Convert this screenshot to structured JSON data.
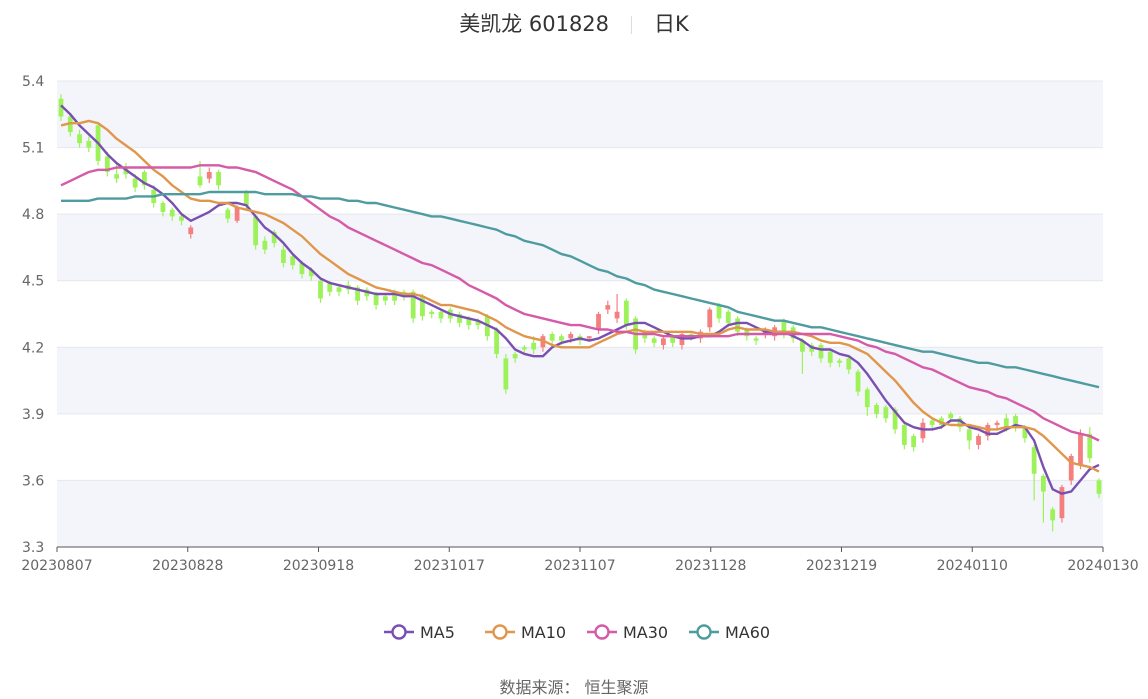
{
  "title": {
    "stock": "美凯龙 601828",
    "period": "日K"
  },
  "source_label": "数据来源：  恒生聚源",
  "colors": {
    "up": "#f47f7f",
    "down": "#9df25a",
    "MA5": "#7a4fb2",
    "MA10": "#e0964b",
    "MA30": "#d55aa8",
    "MA60": "#4f9ca0",
    "band": "#f4f5fb",
    "grid": "#e5e7ee",
    "axis_text": "#666666"
  },
  "chart_data": {
    "type": "candlestick",
    "title": "美凯龙 601828",
    "ylim": [
      3.3,
      5.4
    ],
    "yticks": [
      "5.4",
      "5.1",
      "4.8",
      "4.5",
      "4.2",
      "3.9",
      "3.6",
      "3.3"
    ],
    "xticks": [
      "20230807",
      "20230828",
      "20230918",
      "20231017",
      "20231107",
      "20231128",
      "20231219",
      "20240110",
      "20240130"
    ],
    "series": [
      {
        "name": "MA5",
        "values": [
          5.29,
          5.25,
          5.2,
          5.16,
          5.12,
          5.07,
          5.03,
          5.0,
          4.97,
          4.94,
          4.92,
          4.89,
          4.85,
          4.8,
          4.77,
          4.79,
          4.81,
          4.84,
          4.85,
          4.85,
          4.84,
          4.79,
          4.74,
          4.71,
          4.67,
          4.62,
          4.58,
          4.55,
          4.51,
          4.49,
          4.48,
          4.47,
          4.46,
          4.45,
          4.44,
          4.44,
          4.44,
          4.43,
          4.43,
          4.41,
          4.39,
          4.37,
          4.35,
          4.34,
          4.33,
          4.32,
          4.3,
          4.28,
          4.24,
          4.19,
          4.17,
          4.16,
          4.16,
          4.2,
          4.22,
          4.23,
          4.24,
          4.23,
          4.24,
          4.26,
          4.28,
          4.3,
          4.31,
          4.31,
          4.29,
          4.27,
          4.25,
          4.24,
          4.24,
          4.25,
          4.25,
          4.27,
          4.3,
          4.31,
          4.31,
          4.29,
          4.27,
          4.27,
          4.27,
          4.25,
          4.23,
          4.2,
          4.19,
          4.19,
          4.17,
          4.16,
          4.13,
          4.08,
          4.02,
          3.96,
          3.91,
          3.86,
          3.84,
          3.83,
          3.83,
          3.84,
          3.87,
          3.87,
          3.84,
          3.83,
          3.81,
          3.81,
          3.83,
          3.85,
          3.84,
          3.78,
          3.66,
          3.56,
          3.54,
          3.55,
          3.6,
          3.65,
          3.67
        ]
      },
      {
        "name": "MA10",
        "values": [
          5.2,
          5.21,
          5.21,
          5.22,
          5.21,
          5.18,
          5.14,
          5.11,
          5.08,
          5.04,
          5.0,
          4.97,
          4.93,
          4.9,
          4.87,
          4.86,
          4.86,
          4.85,
          4.85,
          4.83,
          4.82,
          4.81,
          4.8,
          4.78,
          4.76,
          4.73,
          4.7,
          4.66,
          4.62,
          4.59,
          4.56,
          4.53,
          4.51,
          4.49,
          4.47,
          4.46,
          4.45,
          4.44,
          4.44,
          4.43,
          4.41,
          4.39,
          4.39,
          4.38,
          4.37,
          4.36,
          4.34,
          4.32,
          4.29,
          4.27,
          4.25,
          4.24,
          4.23,
          4.21,
          4.2,
          4.2,
          4.2,
          4.2,
          4.22,
          4.24,
          4.26,
          4.27,
          4.28,
          4.27,
          4.27,
          4.27,
          4.27,
          4.27,
          4.27,
          4.26,
          4.26,
          4.26,
          4.28,
          4.29,
          4.28,
          4.28,
          4.28,
          4.27,
          4.27,
          4.27,
          4.26,
          4.25,
          4.23,
          4.22,
          4.22,
          4.21,
          4.19,
          4.17,
          4.13,
          4.09,
          4.05,
          4.0,
          3.95,
          3.91,
          3.88,
          3.86,
          3.85,
          3.85,
          3.85,
          3.84,
          3.83,
          3.83,
          3.84,
          3.84,
          3.84,
          3.83,
          3.8,
          3.76,
          3.72,
          3.68,
          3.67,
          3.66,
          3.64
        ]
      },
      {
        "name": "MA30",
        "values": [
          4.93,
          4.95,
          4.97,
          4.99,
          5.0,
          5.0,
          5.01,
          5.01,
          5.01,
          5.01,
          5.01,
          5.01,
          5.01,
          5.01,
          5.01,
          5.02,
          5.02,
          5.02,
          5.01,
          5.01,
          5.0,
          4.99,
          4.97,
          4.95,
          4.93,
          4.91,
          4.88,
          4.85,
          4.82,
          4.79,
          4.77,
          4.74,
          4.72,
          4.7,
          4.68,
          4.66,
          4.64,
          4.62,
          4.6,
          4.58,
          4.57,
          4.55,
          4.53,
          4.51,
          4.48,
          4.46,
          4.44,
          4.42,
          4.39,
          4.37,
          4.35,
          4.34,
          4.33,
          4.32,
          4.31,
          4.3,
          4.3,
          4.29,
          4.28,
          4.28,
          4.27,
          4.27,
          4.26,
          4.26,
          4.26,
          4.25,
          4.25,
          4.25,
          4.25,
          4.25,
          4.25,
          4.25,
          4.25,
          4.26,
          4.26,
          4.26,
          4.26,
          4.26,
          4.26,
          4.26,
          4.26,
          4.26,
          4.26,
          4.26,
          4.25,
          4.24,
          4.23,
          4.21,
          4.2,
          4.18,
          4.17,
          4.15,
          4.13,
          4.11,
          4.1,
          4.08,
          4.06,
          4.04,
          4.02,
          4.01,
          4.0,
          3.98,
          3.97,
          3.95,
          3.93,
          3.91,
          3.88,
          3.86,
          3.84,
          3.82,
          3.81,
          3.8,
          3.78
        ]
      },
      {
        "name": "MA60",
        "values": [
          4.86,
          4.86,
          4.86,
          4.86,
          4.87,
          4.87,
          4.87,
          4.87,
          4.88,
          4.88,
          4.88,
          4.89,
          4.89,
          4.89,
          4.89,
          4.89,
          4.9,
          4.9,
          4.9,
          4.9,
          4.9,
          4.9,
          4.89,
          4.89,
          4.89,
          4.89,
          4.88,
          4.88,
          4.87,
          4.87,
          4.87,
          4.86,
          4.86,
          4.85,
          4.85,
          4.84,
          4.83,
          4.82,
          4.81,
          4.8,
          4.79,
          4.79,
          4.78,
          4.77,
          4.76,
          4.75,
          4.74,
          4.73,
          4.71,
          4.7,
          4.68,
          4.67,
          4.66,
          4.64,
          4.62,
          4.61,
          4.59,
          4.57,
          4.55,
          4.54,
          4.52,
          4.51,
          4.49,
          4.48,
          4.46,
          4.45,
          4.44,
          4.43,
          4.42,
          4.41,
          4.4,
          4.39,
          4.38,
          4.36,
          4.35,
          4.34,
          4.33,
          4.32,
          4.32,
          4.31,
          4.3,
          4.29,
          4.29,
          4.28,
          4.27,
          4.26,
          4.25,
          4.24,
          4.23,
          4.22,
          4.21,
          4.2,
          4.19,
          4.18,
          4.18,
          4.17,
          4.16,
          4.15,
          4.14,
          4.13,
          4.13,
          4.12,
          4.11,
          4.11,
          4.1,
          4.09,
          4.08,
          4.07,
          4.06,
          4.05,
          4.04,
          4.03,
          4.02
        ]
      }
    ],
    "candles": {
      "open": [
        5.32,
        5.24,
        5.16,
        5.13,
        5.2,
        5.06,
        4.98,
        5.01,
        4.96,
        4.99,
        4.91,
        4.85,
        4.82,
        4.79,
        4.71,
        4.97,
        4.96,
        4.99,
        4.82,
        4.77,
        4.9,
        4.79,
        4.68,
        4.72,
        4.64,
        4.61,
        4.58,
        4.55,
        4.5,
        4.49,
        4.47,
        4.48,
        4.47,
        4.46,
        4.44,
        4.43,
        4.45,
        4.45,
        4.45,
        4.43,
        4.36,
        4.36,
        4.37,
        4.35,
        4.33,
        4.32,
        4.34,
        4.28,
        4.15,
        4.17,
        4.2,
        4.22,
        4.2,
        4.26,
        4.25,
        4.24,
        4.25,
        4.24,
        4.28,
        4.37,
        4.33,
        4.41,
        4.33,
        4.27,
        4.24,
        4.21,
        4.25,
        4.21,
        4.26,
        4.24,
        4.29,
        4.39,
        4.36,
        4.33,
        4.28,
        4.24,
        4.26,
        4.25,
        4.32,
        4.29,
        4.23,
        4.21,
        4.21,
        4.18,
        4.14,
        4.15,
        4.09,
        4.01,
        3.94,
        3.93,
        3.92,
        3.85,
        3.8,
        3.79,
        3.87,
        3.88,
        3.9,
        3.88,
        3.83,
        3.76,
        3.8,
        3.85,
        3.88,
        3.89,
        3.84,
        3.75,
        3.62,
        3.47,
        3.43,
        3.6,
        3.67,
        3.81,
        3.6
      ],
      "close": [
        5.24,
        5.17,
        5.12,
        5.1,
        5.04,
        4.99,
        4.96,
        4.98,
        4.92,
        4.93,
        4.85,
        4.81,
        4.79,
        4.77,
        4.74,
        4.93,
        4.99,
        4.93,
        4.78,
        4.83,
        4.84,
        4.66,
        4.64,
        4.67,
        4.58,
        4.57,
        4.53,
        4.52,
        4.42,
        4.45,
        4.45,
        4.46,
        4.41,
        4.43,
        4.39,
        4.41,
        4.41,
        4.43,
        4.33,
        4.34,
        4.35,
        4.33,
        4.33,
        4.31,
        4.3,
        4.3,
        4.25,
        4.17,
        4.01,
        4.15,
        4.19,
        4.19,
        4.25,
        4.23,
        4.23,
        4.26,
        4.23,
        4.25,
        4.35,
        4.39,
        4.36,
        4.3,
        4.19,
        4.24,
        4.22,
        4.24,
        4.22,
        4.26,
        4.25,
        4.27,
        4.37,
        4.33,
        4.31,
        4.27,
        4.25,
        4.23,
        4.28,
        4.29,
        4.26,
        4.24,
        4.18,
        4.18,
        4.15,
        4.13,
        4.13,
        4.1,
        4.0,
        3.93,
        3.9,
        3.88,
        3.83,
        3.76,
        3.75,
        3.86,
        3.85,
        3.85,
        3.88,
        3.84,
        3.78,
        3.8,
        3.85,
        3.86,
        3.84,
        3.84,
        3.79,
        3.63,
        3.55,
        3.42,
        3.57,
        3.71,
        3.81,
        3.7,
        3.54
      ],
      "high": [
        5.34,
        5.25,
        5.18,
        5.15,
        5.21,
        5.08,
        5.03,
        5.03,
        4.98,
        5.0,
        4.93,
        4.86,
        4.83,
        4.8,
        4.75,
        5.04,
        5.01,
        5.0,
        4.83,
        4.84,
        4.91,
        4.8,
        4.7,
        4.73,
        4.66,
        4.62,
        4.59,
        4.56,
        4.51,
        4.5,
        4.48,
        4.5,
        4.48,
        4.47,
        4.45,
        4.44,
        4.46,
        4.46,
        4.46,
        4.44,
        4.37,
        4.37,
        4.38,
        4.36,
        4.34,
        4.33,
        4.35,
        4.29,
        4.17,
        4.18,
        4.21,
        4.25,
        4.26,
        4.27,
        4.26,
        4.27,
        4.26,
        4.25,
        4.36,
        4.41,
        4.44,
        4.42,
        4.34,
        4.28,
        4.25,
        4.25,
        4.26,
        4.27,
        4.27,
        4.28,
        4.38,
        4.4,
        4.37,
        4.34,
        4.29,
        4.25,
        4.29,
        4.3,
        4.33,
        4.3,
        4.24,
        4.22,
        4.22,
        4.19,
        4.15,
        4.16,
        4.1,
        4.02,
        3.95,
        3.94,
        3.93,
        3.86,
        3.81,
        3.88,
        3.88,
        3.89,
        3.91,
        3.89,
        3.84,
        3.81,
        3.86,
        3.87,
        3.9,
        3.9,
        3.85,
        3.76,
        3.63,
        3.48,
        3.58,
        3.72,
        3.83,
        3.84,
        3.61
      ],
      "low": [
        5.22,
        5.15,
        5.1,
        5.08,
        5.02,
        4.97,
        4.94,
        4.96,
        4.9,
        4.91,
        4.83,
        4.79,
        4.77,
        4.75,
        4.69,
        4.92,
        4.94,
        4.91,
        4.76,
        4.76,
        4.82,
        4.64,
        4.62,
        4.65,
        4.56,
        4.55,
        4.51,
        4.5,
        4.4,
        4.43,
        4.43,
        4.44,
        4.39,
        4.41,
        4.37,
        4.39,
        4.39,
        4.41,
        4.31,
        4.32,
        4.33,
        4.31,
        4.31,
        4.29,
        4.28,
        4.28,
        4.23,
        4.15,
        3.99,
        4.13,
        4.17,
        4.17,
        4.18,
        4.21,
        4.21,
        4.22,
        4.21,
        4.23,
        4.26,
        4.35,
        4.31,
        4.28,
        4.17,
        4.22,
        4.2,
        4.19,
        4.2,
        4.19,
        4.23,
        4.22,
        4.27,
        4.31,
        4.29,
        4.25,
        4.23,
        4.21,
        4.24,
        4.23,
        4.24,
        4.22,
        4.08,
        4.16,
        4.13,
        4.11,
        4.11,
        4.08,
        3.98,
        3.89,
        3.88,
        3.86,
        3.81,
        3.74,
        3.73,
        3.77,
        3.83,
        3.83,
        3.86,
        3.82,
        3.74,
        3.74,
        3.78,
        3.83,
        3.82,
        3.82,
        3.77,
        3.51,
        3.41,
        3.37,
        3.41,
        3.58,
        3.65,
        3.68,
        3.52
      ]
    },
    "legend": [
      "MA5",
      "MA10",
      "MA30",
      "MA60"
    ],
    "legend_position": "bottom-center",
    "grid": true
  }
}
